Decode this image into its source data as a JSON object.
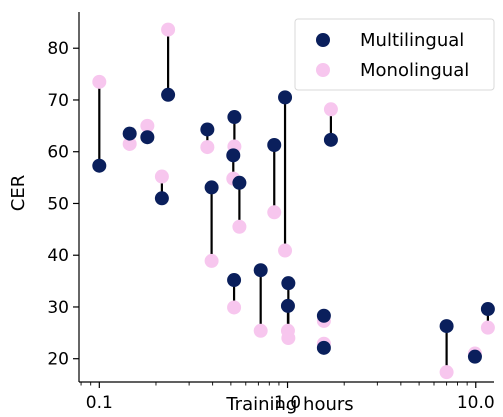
{
  "chart_data": {
    "type": "scatter",
    "xlabel": "Training hours",
    "ylabel": "CER",
    "xscale": "log",
    "xlim": [
      0.078,
      12.5
    ],
    "ylim": [
      15.5,
      87
    ],
    "x_ticks": [
      0.1,
      1.0,
      10.0
    ],
    "x_tick_labels": [
      "0.1",
      "1.0",
      "10.0"
    ],
    "y_ticks": [
      20,
      30,
      40,
      50,
      60,
      70,
      80
    ],
    "y_tick_labels": [
      "20",
      "30",
      "40",
      "50",
      "60",
      "70",
      "80"
    ],
    "grid": false,
    "legend_position": "top-right",
    "series": [
      {
        "name": "Multilingual",
        "color": "#0a1f5c",
        "points": [
          [
            0.1,
            57.3
          ],
          [
            0.145,
            63.5
          ],
          [
            0.18,
            62.8
          ],
          [
            0.215,
            51.0
          ],
          [
            0.232,
            71.0
          ],
          [
            0.375,
            64.3
          ],
          [
            0.395,
            53.1
          ],
          [
            0.515,
            59.3
          ],
          [
            0.522,
            66.7
          ],
          [
            0.52,
            35.2
          ],
          [
            0.555,
            54.0
          ],
          [
            0.72,
            37.1
          ],
          [
            0.85,
            61.3
          ],
          [
            0.97,
            70.5
          ],
          [
            1.01,
            34.6
          ],
          [
            1.005,
            30.2
          ],
          [
            1.56,
            28.3
          ],
          [
            1.56,
            22.1
          ],
          [
            1.7,
            62.3
          ],
          [
            7.0,
            26.3
          ],
          [
            9.9,
            20.4
          ],
          [
            11.6,
            29.6
          ]
        ]
      },
      {
        "name": "Monolingual",
        "color": "#f7c6ee",
        "points": [
          [
            0.1,
            73.5
          ],
          [
            0.145,
            61.5
          ],
          [
            0.18,
            65.0
          ],
          [
            0.215,
            55.2
          ],
          [
            0.232,
            83.6
          ],
          [
            0.375,
            60.9
          ],
          [
            0.395,
            38.9
          ],
          [
            0.515,
            54.8
          ],
          [
            0.522,
            61.0
          ],
          [
            0.52,
            29.9
          ],
          [
            0.555,
            45.5
          ],
          [
            0.72,
            25.4
          ],
          [
            0.85,
            48.3
          ],
          [
            0.97,
            40.9
          ],
          [
            1.01,
            24.0
          ],
          [
            1.005,
            25.4
          ],
          [
            1.56,
            27.3
          ],
          [
            1.56,
            22.9
          ],
          [
            1.7,
            68.2
          ],
          [
            7.0,
            17.4
          ],
          [
            9.9,
            21.0
          ],
          [
            11.6,
            26.0
          ]
        ]
      }
    ]
  }
}
